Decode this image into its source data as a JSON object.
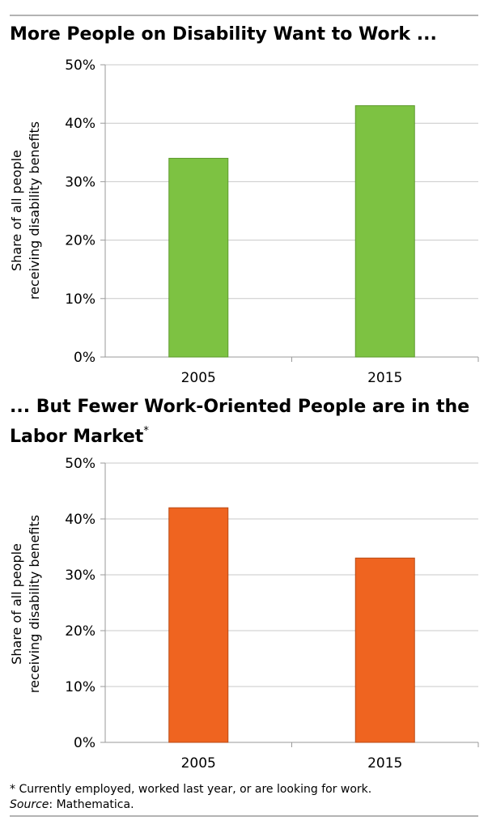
{
  "chart_data": [
    {
      "type": "bar",
      "title": "More People on Disability Want to Work ...",
      "title_sup": "",
      "ylabel_lines": [
        "Share of all people",
        "receiving disability benefits"
      ],
      "categories": [
        "2005",
        "2015"
      ],
      "values": [
        34,
        43
      ],
      "yticks": [
        "0%",
        "10%",
        "20%",
        "30%",
        "40%",
        "50%"
      ],
      "ylim": [
        0,
        50
      ],
      "grid": true,
      "bar_color": "#7dc242",
      "bar_edge": "#5e9a2e"
    },
    {
      "type": "bar",
      "title": "... But Fewer Work-Oriented People are in the Labor Market",
      "title_sup": "*",
      "ylabel_lines": [
        "Share of all people",
        "receiving disability benefits"
      ],
      "categories": [
        "2005",
        "2015"
      ],
      "values": [
        42,
        33
      ],
      "yticks": [
        "0%",
        "10%",
        "20%",
        "30%",
        "40%",
        "50%"
      ],
      "ylim": [
        0,
        50
      ],
      "grid": true,
      "bar_color": "#ef6420",
      "bar_edge": "#b84a15"
    }
  ],
  "footnote": "* Currently employed, worked last year, or are looking for work.",
  "source_label": "Source",
  "source_text": ": Mathematica."
}
